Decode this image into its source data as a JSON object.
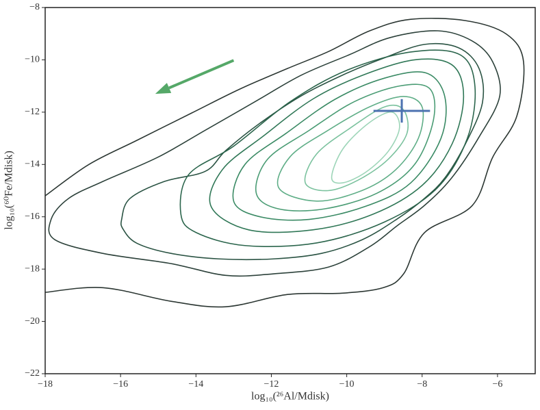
{
  "chart_data": {
    "type": "contour",
    "xlabel": "log₁₀(²⁶Al/Mdisk)",
    "ylabel": "log₁₀(⁶⁰Fe/Mdisk)",
    "xlim": [
      -18,
      -5
    ],
    "ylim": [
      -22,
      -8
    ],
    "xticks": [
      {
        "value": -18,
        "label": "−18"
      },
      {
        "value": -16,
        "label": "−16"
      },
      {
        "value": -14,
        "label": "−14"
      },
      {
        "value": -12,
        "label": "−12"
      },
      {
        "value": -10,
        "label": "−10"
      },
      {
        "value": -8,
        "label": "−8"
      },
      {
        "value": -6,
        "label": "−6"
      }
    ],
    "yticks": [
      {
        "value": -22,
        "label": "−22"
      },
      {
        "value": -20,
        "label": "−20"
      },
      {
        "value": -18,
        "label": "−18"
      },
      {
        "value": -16,
        "label": "−16"
      },
      {
        "value": -14,
        "label": "−14"
      },
      {
        "value": -12,
        "label": "−12"
      },
      {
        "value": -10,
        "label": "−10"
      },
      {
        "value": -8,
        "label": "−8"
      }
    ],
    "contours": [
      {
        "color": "#2b3632",
        "closed": false,
        "x": [
          -18,
          -16.84,
          -15.57,
          -14.11,
          -12.84,
          -11.57,
          -10.48,
          -9.39,
          -8.3,
          -6.85,
          -5.76,
          -5.31,
          -5.49,
          -6.13,
          -6.67,
          -7.94,
          -8.49,
          -9.03,
          -10.12,
          -11.57,
          -13.21,
          -14.66,
          -16.47,
          -18
        ],
        "y": [
          -15.2,
          -14.0,
          -13.08,
          -12.03,
          -11.12,
          -10.33,
          -9.68,
          -8.89,
          -8.45,
          -8.5,
          -9.02,
          -10.07,
          -12.16,
          -13.73,
          -15.57,
          -16.61,
          -18.18,
          -18.71,
          -18.92,
          -18.97,
          -19.44,
          -19.23,
          -18.71,
          -18.89
        ]
      },
      {
        "color": "#2c413a",
        "closed": true,
        "x": [
          -17.84,
          -17.38,
          -16.47,
          -15.02,
          -13.75,
          -12.48,
          -11.21,
          -9.94,
          -8.85,
          -7.58,
          -6.67,
          -6.13,
          -5.94,
          -6.49,
          -7.22,
          -7.94,
          -8.67,
          -9.39,
          -10.48,
          -11.94,
          -13.21,
          -14.66,
          -16.47,
          -17.75
        ],
        "y": [
          -16.09,
          -15.3,
          -14.65,
          -13.73,
          -12.69,
          -11.64,
          -10.59,
          -9.81,
          -9.15,
          -8.89,
          -9.28,
          -10.07,
          -11.38,
          -12.95,
          -14.52,
          -15.57,
          -16.35,
          -17.14,
          -17.92,
          -18.18,
          -18.24,
          -17.79,
          -17.4,
          -16.87
        ]
      },
      {
        "color": "#2a5343",
        "closed": true,
        "x": [
          -15.97,
          -15.75,
          -14.84,
          -13.75,
          -13.21,
          -12.3,
          -11.21,
          -10.12,
          -9.03,
          -7.94,
          -7.03,
          -6.49,
          -6.4,
          -6.85,
          -7.4,
          -7.94,
          -8.67,
          -9.58,
          -10.67,
          -11.94,
          -13.39,
          -14.66,
          -15.57,
          -15.93
        ],
        "y": [
          -16.09,
          -15.3,
          -14.65,
          -14.26,
          -13.47,
          -12.42,
          -11.38,
          -10.59,
          -9.94,
          -9.41,
          -9.54,
          -10.33,
          -11.64,
          -13.21,
          -14.52,
          -15.3,
          -16.09,
          -16.87,
          -17.4,
          -17.61,
          -17.61,
          -17.4,
          -17.01,
          -16.48
        ]
      },
      {
        "color": "#2b654c",
        "closed": true,
        "x": [
          -14.4,
          -14.2,
          -13.0,
          -11.5,
          -10.0,
          -8.3,
          -7.0,
          -6.6,
          -6.8,
          -7.6,
          -9.0,
          -10.8,
          -12.7,
          -14.0
        ],
        "y": [
          -15.9,
          -14.4,
          -13.3,
          -11.6,
          -10.4,
          -9.7,
          -9.8,
          -11.0,
          -13.0,
          -14.9,
          -16.2,
          -17.0,
          -17.1,
          -16.6
        ]
      },
      {
        "color": "#2f7756",
        "closed": true,
        "x": [
          -13.6,
          -13.3,
          -12.2,
          -10.9,
          -9.6,
          -8.2,
          -7.2,
          -6.9,
          -7.2,
          -8.0,
          -9.3,
          -10.9,
          -12.6
        ],
        "y": [
          -15.6,
          -14.2,
          -12.9,
          -11.5,
          -10.6,
          -10.0,
          -10.2,
          -11.4,
          -13.2,
          -14.8,
          -15.9,
          -16.5,
          -16.5
        ]
      },
      {
        "color": "#3a8a64",
        "closed": true,
        "x": [
          -13.0,
          -12.7,
          -11.6,
          -10.3,
          -9.0,
          -7.9,
          -7.4,
          -7.5,
          -8.3,
          -9.5,
          -11.0,
          -12.3
        ],
        "y": [
          -15.4,
          -14.0,
          -12.8,
          -11.5,
          -10.7,
          -10.5,
          -11.4,
          -13.0,
          -14.7,
          -15.6,
          -16.1,
          -16.0
        ]
      },
      {
        "color": "#4a9c74",
        "closed": true,
        "x": [
          -12.4,
          -12.1,
          -11.0,
          -9.8,
          -8.6,
          -7.8,
          -7.7,
          -8.2,
          -9.2,
          -10.6,
          -11.8
        ],
        "y": [
          -15.1,
          -13.8,
          -12.7,
          -11.6,
          -11.0,
          -11.1,
          -12.3,
          -14.0,
          -15.1,
          -15.7,
          -15.7
        ]
      },
      {
        "color": "#5fae87",
        "closed": true,
        "x": [
          -11.8,
          -11.5,
          -10.5,
          -9.4,
          -8.5,
          -8.0,
          -8.1,
          -8.7,
          -9.6,
          -10.8
        ],
        "y": [
          -14.9,
          -13.7,
          -12.7,
          -11.8,
          -11.4,
          -11.8,
          -13.0,
          -14.2,
          -15.0,
          -15.4
        ]
      },
      {
        "color": "#7bc29e",
        "closed": true,
        "x": [
          -11.1,
          -10.8,
          -9.9,
          -9.0,
          -8.5,
          -8.4,
          -8.9,
          -9.7,
          -10.5
        ],
        "y": [
          -14.7,
          -13.6,
          -12.6,
          -11.8,
          -11.9,
          -12.8,
          -13.8,
          -14.6,
          -15.0
        ]
      },
      {
        "color": "#9dd5b8",
        "closed": true,
        "x": [
          -10.4,
          -10.1,
          -9.4,
          -8.8,
          -8.6,
          -8.9,
          -9.5,
          -10.1
        ],
        "y": [
          -14.5,
          -13.4,
          -12.4,
          -12.0,
          -12.6,
          -13.5,
          -14.3,
          -14.7
        ]
      }
    ],
    "errorbar": {
      "x": -8.54,
      "y": -11.95,
      "xerr": 0.75,
      "yerr": 0.45,
      "color": "#4c72b0"
    },
    "arrow": {
      "x": -13.0,
      "y": -10.02,
      "x_end": -15.08,
      "y_end": -11.3,
      "color": "#55a868"
    }
  }
}
